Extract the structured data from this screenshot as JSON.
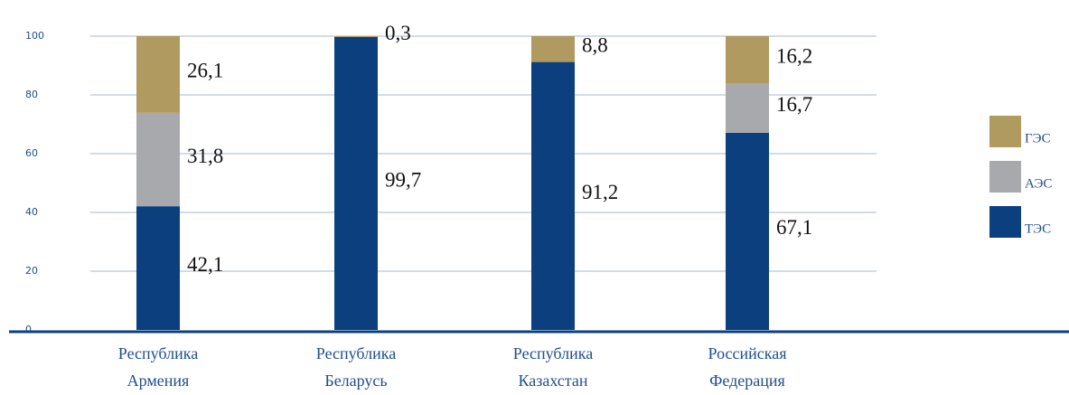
{
  "chart_data": {
    "type": "stacked_bar",
    "categories": [
      "Республика Армения",
      "Республика Беларусь",
      "Республика Казахстан",
      "Российская Федерация"
    ],
    "series": [
      {
        "name": "ТЭС",
        "color": "#0c3f7e",
        "values": [
          42.1,
          99.7,
          91.2,
          67.1
        ],
        "value_labels": [
          "42,1",
          "99,7",
          "91,2",
          "67,1"
        ]
      },
      {
        "name": "АЭС",
        "color": "#a7a9ac",
        "values": [
          31.8,
          null,
          null,
          16.7
        ],
        "value_labels": [
          "31,8",
          null,
          null,
          "16,7"
        ]
      },
      {
        "name": "ГЭС",
        "color": "#b19a5f",
        "values": [
          26.1,
          0.3,
          8.8,
          16.2
        ],
        "value_labels": [
          "26,1",
          "0,3",
          "8,8",
          "16,2"
        ]
      }
    ],
    "ylim": [
      0,
      100
    ],
    "yticks": [
      0,
      20,
      40,
      60,
      80,
      100
    ],
    "grid": true,
    "legend": "right"
  }
}
